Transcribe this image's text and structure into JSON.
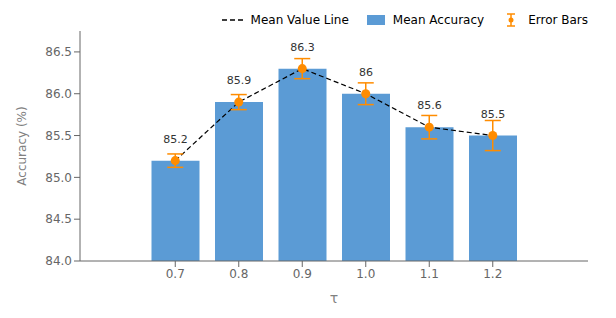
{
  "chart_data": {
    "type": "bar",
    "xlabel": "τ",
    "ylabel": "Accuracy (%)",
    "x": [
      0.7,
      0.8,
      0.9,
      1.0,
      1.1,
      1.2
    ],
    "xlim": [
      0.55,
      1.35
    ],
    "xticks": [
      0.7,
      0.8,
      0.9,
      {
        "value": 1.0,
        "label": "1.0"
      },
      1.1,
      1.2
    ],
    "ylim": [
      84.0,
      86.75
    ],
    "yticks": [
      {
        "value": 84.0,
        "label": "84.0"
      },
      84.5,
      {
        "value": 85.0,
        "label": "85.0"
      },
      85.5,
      {
        "value": 86.0,
        "label": "86.0"
      },
      86.5
    ],
    "grid": false,
    "legend": "upper right",
    "data_labels": true,
    "series": [
      {
        "name": "Mean Value Line",
        "type": "line",
        "color": "black",
        "line_style": "dashed",
        "values": [
          85.2,
          85.9,
          86.3,
          86.0,
          85.6,
          85.5
        ]
      },
      {
        "name": "Mean Accuracy",
        "type": "bar",
        "color": "#5B9BD5",
        "values": [
          85.2,
          85.9,
          86.3,
          86.0,
          85.6,
          85.5
        ]
      },
      {
        "name": "Error Bars",
        "type": "errorbar",
        "color": "#FF8C00",
        "marker": "circle",
        "values": [
          85.2,
          85.9,
          86.3,
          86.0,
          85.6,
          85.5
        ],
        "errors": [
          0.08,
          0.09,
          0.12,
          0.13,
          0.14,
          0.18
        ]
      }
    ]
  }
}
